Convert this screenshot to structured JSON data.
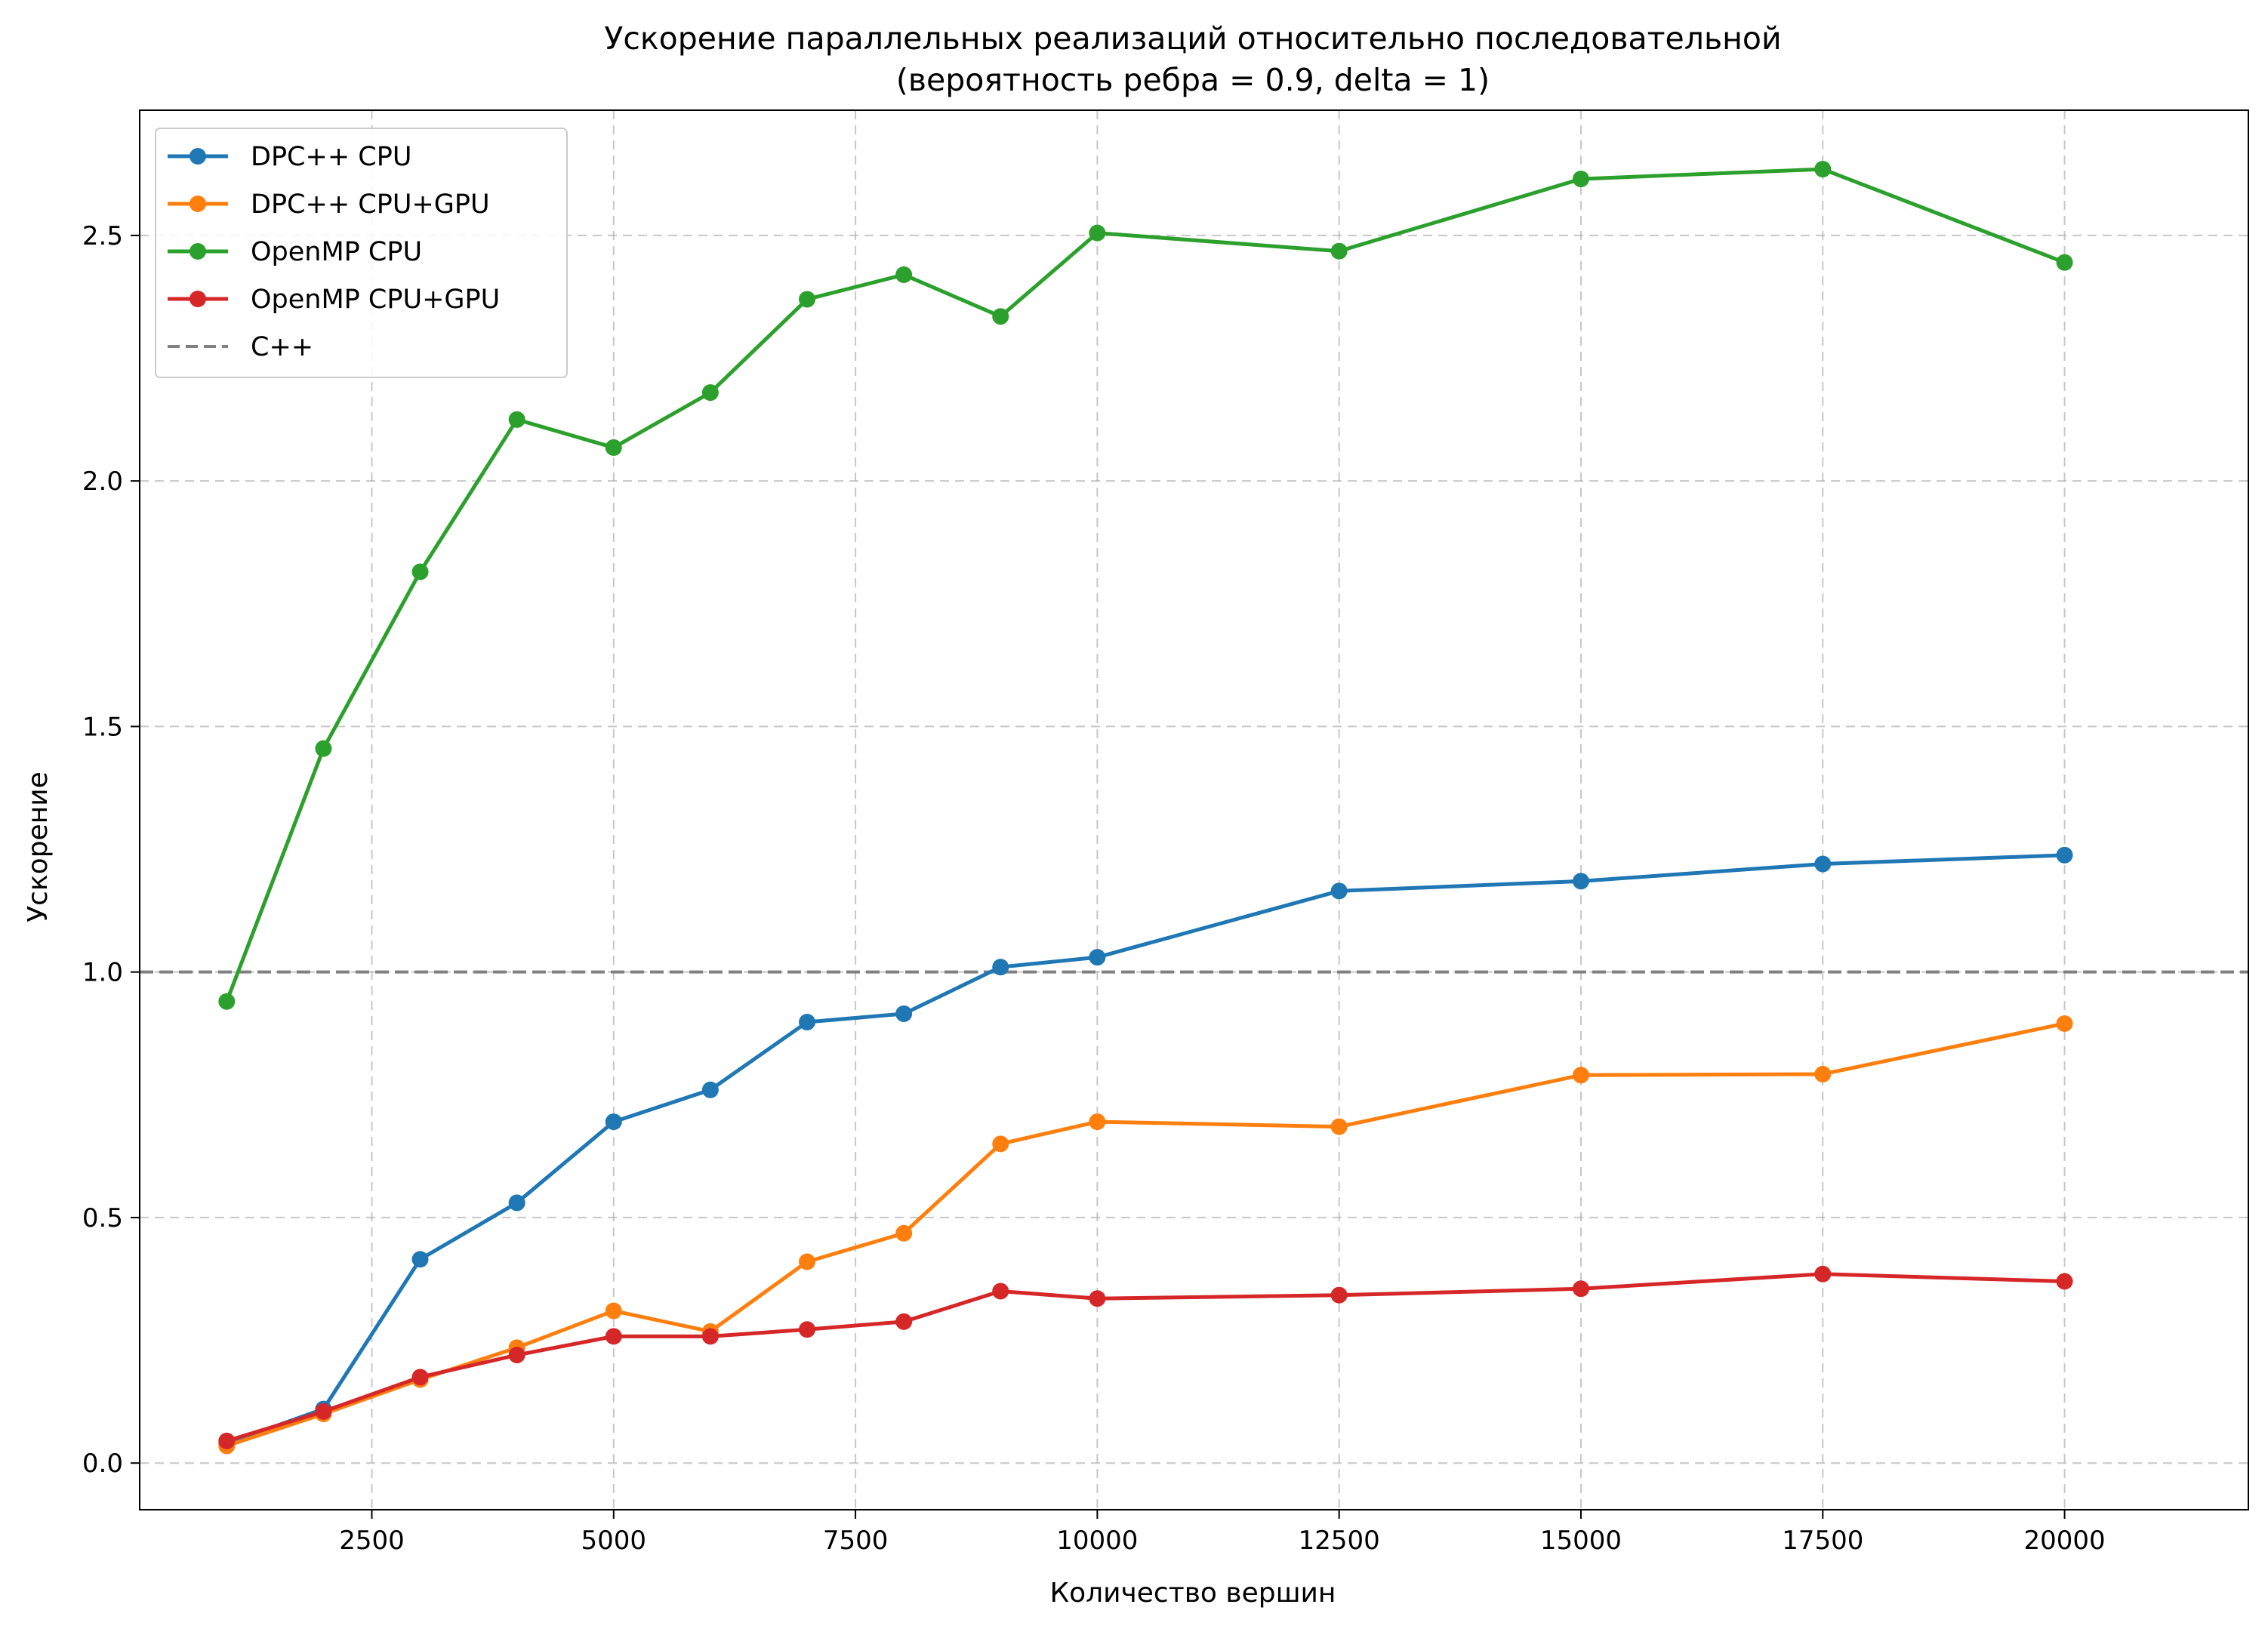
{
  "chart_data": {
    "type": "line",
    "title": "Ускорение параллельных реализаций относительно последовательной",
    "subtitle": "(вероятность ребра = 0.9, delta = 1)",
    "xlabel": "Количество вершин",
    "ylabel": "Ускорение",
    "xlim": [
      100,
      21900
    ],
    "ylim": [
      -0.095,
      2.755
    ],
    "xticks": [
      2500,
      5000,
      7500,
      10000,
      12500,
      15000,
      17500,
      20000
    ],
    "yticks": [
      0.0,
      0.5,
      1.0,
      1.5,
      2.0,
      2.5
    ],
    "xtick_labels": [
      "2500",
      "5000",
      "7500",
      "10000",
      "12500",
      "15000",
      "17500",
      "20000"
    ],
    "ytick_labels": [
      "0.0",
      "0.5",
      "1.0",
      "1.5",
      "2.0",
      "2.5"
    ],
    "grid": true,
    "legend_position": "upper-left",
    "x": [
      1000,
      2000,
      3000,
      4000,
      5000,
      6000,
      7000,
      8000,
      9000,
      10000,
      12500,
      15000,
      17500,
      20000
    ],
    "series": [
      {
        "name": "DPC++ CPU",
        "color": "#1f77b4",
        "values": [
          0.04,
          0.11,
          0.415,
          0.53,
          0.695,
          0.76,
          0.898,
          0.915,
          1.01,
          1.03,
          1.165,
          1.185,
          1.22,
          1.238
        ]
      },
      {
        "name": "DPC++ CPU+GPU",
        "color": "#ff7f0e",
        "values": [
          0.035,
          0.1,
          0.17,
          0.235,
          0.31,
          0.268,
          0.41,
          0.468,
          0.65,
          0.695,
          0.685,
          0.79,
          0.792,
          0.895
        ]
      },
      {
        "name": "OpenMP CPU",
        "color": "#2ca02c",
        "values": [
          0.94,
          1.455,
          1.815,
          2.125,
          2.068,
          2.18,
          2.37,
          2.42,
          2.335,
          2.505,
          2.468,
          2.615,
          2.635,
          2.445
        ]
      },
      {
        "name": "OpenMP CPU+GPU",
        "color": "#d62728",
        "values": [
          0.045,
          0.105,
          0.175,
          0.22,
          0.258,
          0.258,
          0.272,
          0.288,
          0.35,
          0.335,
          0.342,
          0.355,
          0.385,
          0.37
        ]
      }
    ],
    "reference_line": {
      "name": "C++",
      "y": 1.0,
      "color": "#808080",
      "style": "dashed"
    }
  }
}
